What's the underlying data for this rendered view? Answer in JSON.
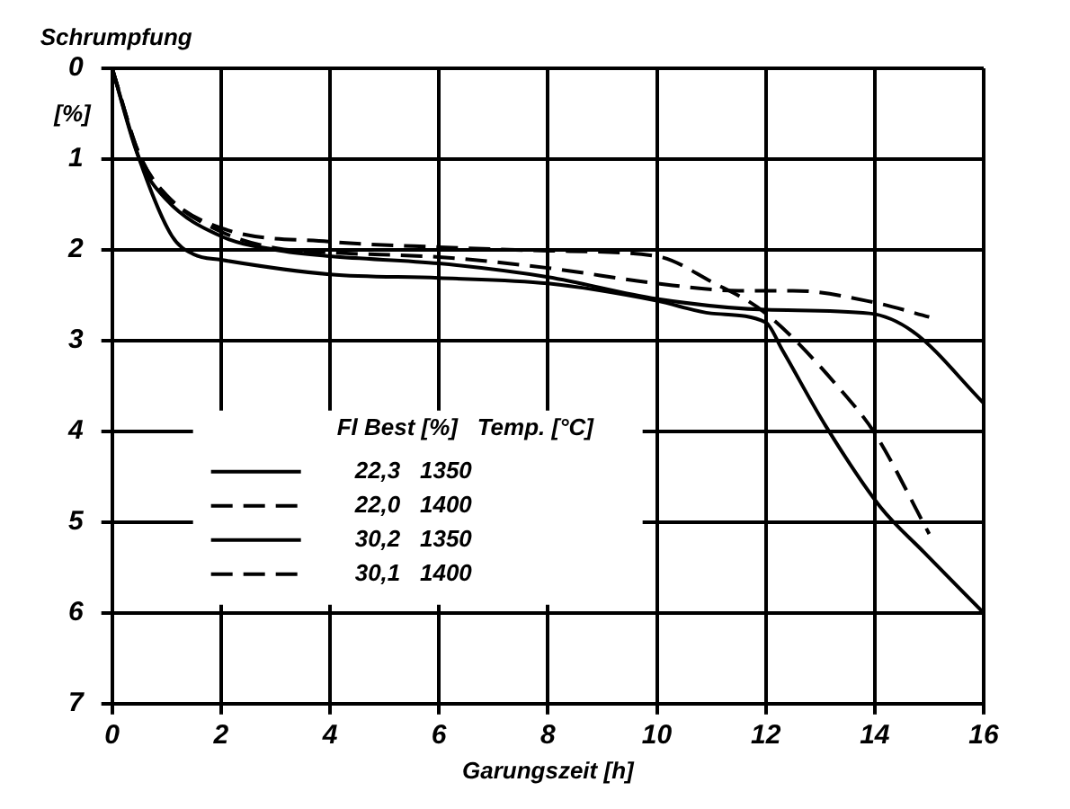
{
  "chart_data": {
    "type": "line",
    "ylabel": "Schrumpfung",
    "xlabel": "Garungszeit [h]",
    "legend_title": "Fl Best [%]   Temp. [°C]",
    "annotations": [
      "[%]"
    ],
    "xlim": [
      0,
      16
    ],
    "xticks": [
      0,
      2,
      4,
      6,
      8,
      10,
      12,
      14,
      16
    ],
    "ylim": [
      7,
      0
    ],
    "yticks": [
      0,
      1,
      2,
      3,
      4,
      5,
      6,
      7
    ],
    "grid": true,
    "legend": "bottom left",
    "marker": "none",
    "series": [
      {
        "name": "22,3   1350",
        "color": "#000000",
        "line_style": "solid",
        "x": [
          0,
          0.5,
          1.1,
          1.5,
          2,
          4,
          6,
          8,
          10,
          11,
          12,
          12.3,
          13.1,
          14.1,
          14.9,
          16
        ],
        "values": [
          0,
          1.0,
          1.85,
          2.05,
          2.11,
          2.27,
          2.31,
          2.37,
          2.56,
          2.7,
          2.8,
          3.1,
          3.94,
          4.83,
          5.33,
          6.0
        ]
      },
      {
        "name": "22,0   1400",
        "color": "#000000",
        "line_style": "dashed",
        "x": [
          0,
          0.5,
          1,
          2,
          4,
          6,
          8,
          10,
          11,
          12,
          13.5,
          14,
          15
        ],
        "values": [
          0,
          0.95,
          1.4,
          1.76,
          1.91,
          1.97,
          2.01,
          2.07,
          2.35,
          2.7,
          3.63,
          4.02,
          5.13
        ]
      },
      {
        "name": "30,2   1350",
        "color": "#000000",
        "line_style": "solid",
        "x": [
          0,
          0.5,
          1,
          2,
          3,
          4,
          6,
          8,
          10,
          12,
          13.9,
          14.7,
          16
        ],
        "values": [
          0,
          1.0,
          1.45,
          1.85,
          2.0,
          2.07,
          2.15,
          2.3,
          2.54,
          2.66,
          2.7,
          2.9,
          3.69
        ]
      },
      {
        "name": "30,1   1400",
        "color": "#000000",
        "line_style": "dashed",
        "x": [
          0,
          0.5,
          1,
          2,
          3,
          4,
          6,
          8,
          10,
          11.5,
          12.5,
          14,
          15
        ],
        "values": [
          0,
          0.95,
          1.4,
          1.8,
          1.98,
          2.03,
          2.08,
          2.2,
          2.37,
          2.45,
          2.45,
          2.58,
          2.74
        ]
      }
    ]
  }
}
